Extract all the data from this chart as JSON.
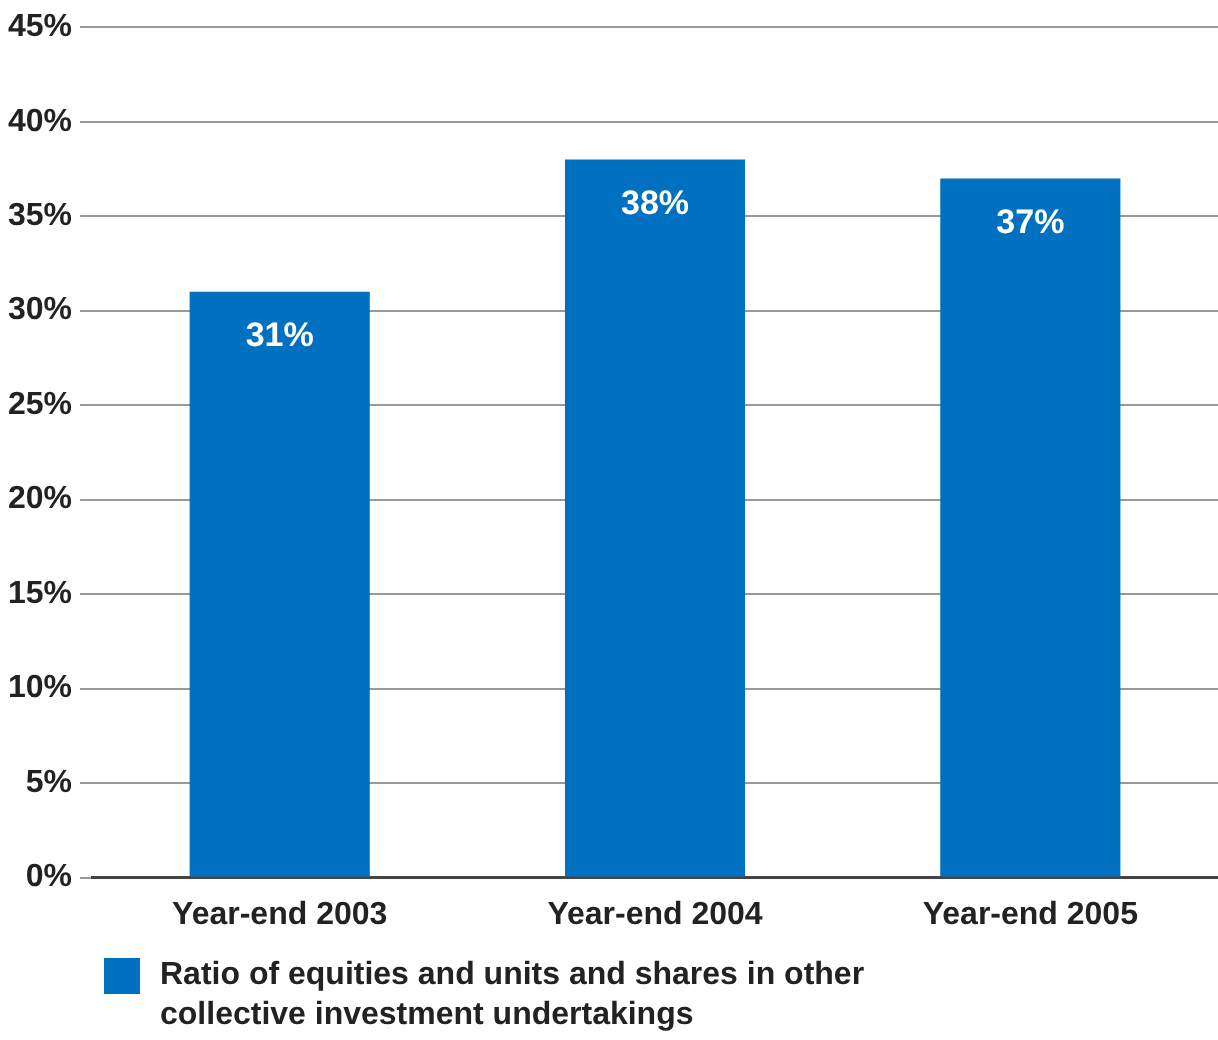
{
  "chart_data": {
    "type": "bar",
    "categories": [
      "Year-end 2003",
      "Year-end 2004",
      "Year-end 2005"
    ],
    "series": [
      {
        "name": "Ratio of equities and units and shares in other collective investment undertakings",
        "color": "#0070c0",
        "values": [
          31,
          38,
          37
        ],
        "value_labels": [
          "31%",
          "38%",
          "37%"
        ]
      }
    ],
    "ylim": [
      0,
      45
    ],
    "yticks": [
      {
        "value": 0,
        "label": "0%"
      },
      {
        "value": 5,
        "label": "5%"
      },
      {
        "value": 10,
        "label": "10%"
      },
      {
        "value": 15,
        "label": "15%"
      },
      {
        "value": 20,
        "label": "20%"
      },
      {
        "value": 25,
        "label": "25%"
      },
      {
        "value": 30,
        "label": "30%"
      },
      {
        "value": 35,
        "label": "35%"
      },
      {
        "value": 40,
        "label": "40%"
      },
      {
        "value": 45,
        "label": "45%"
      }
    ],
    "grid": "y",
    "legend": "bottom"
  }
}
